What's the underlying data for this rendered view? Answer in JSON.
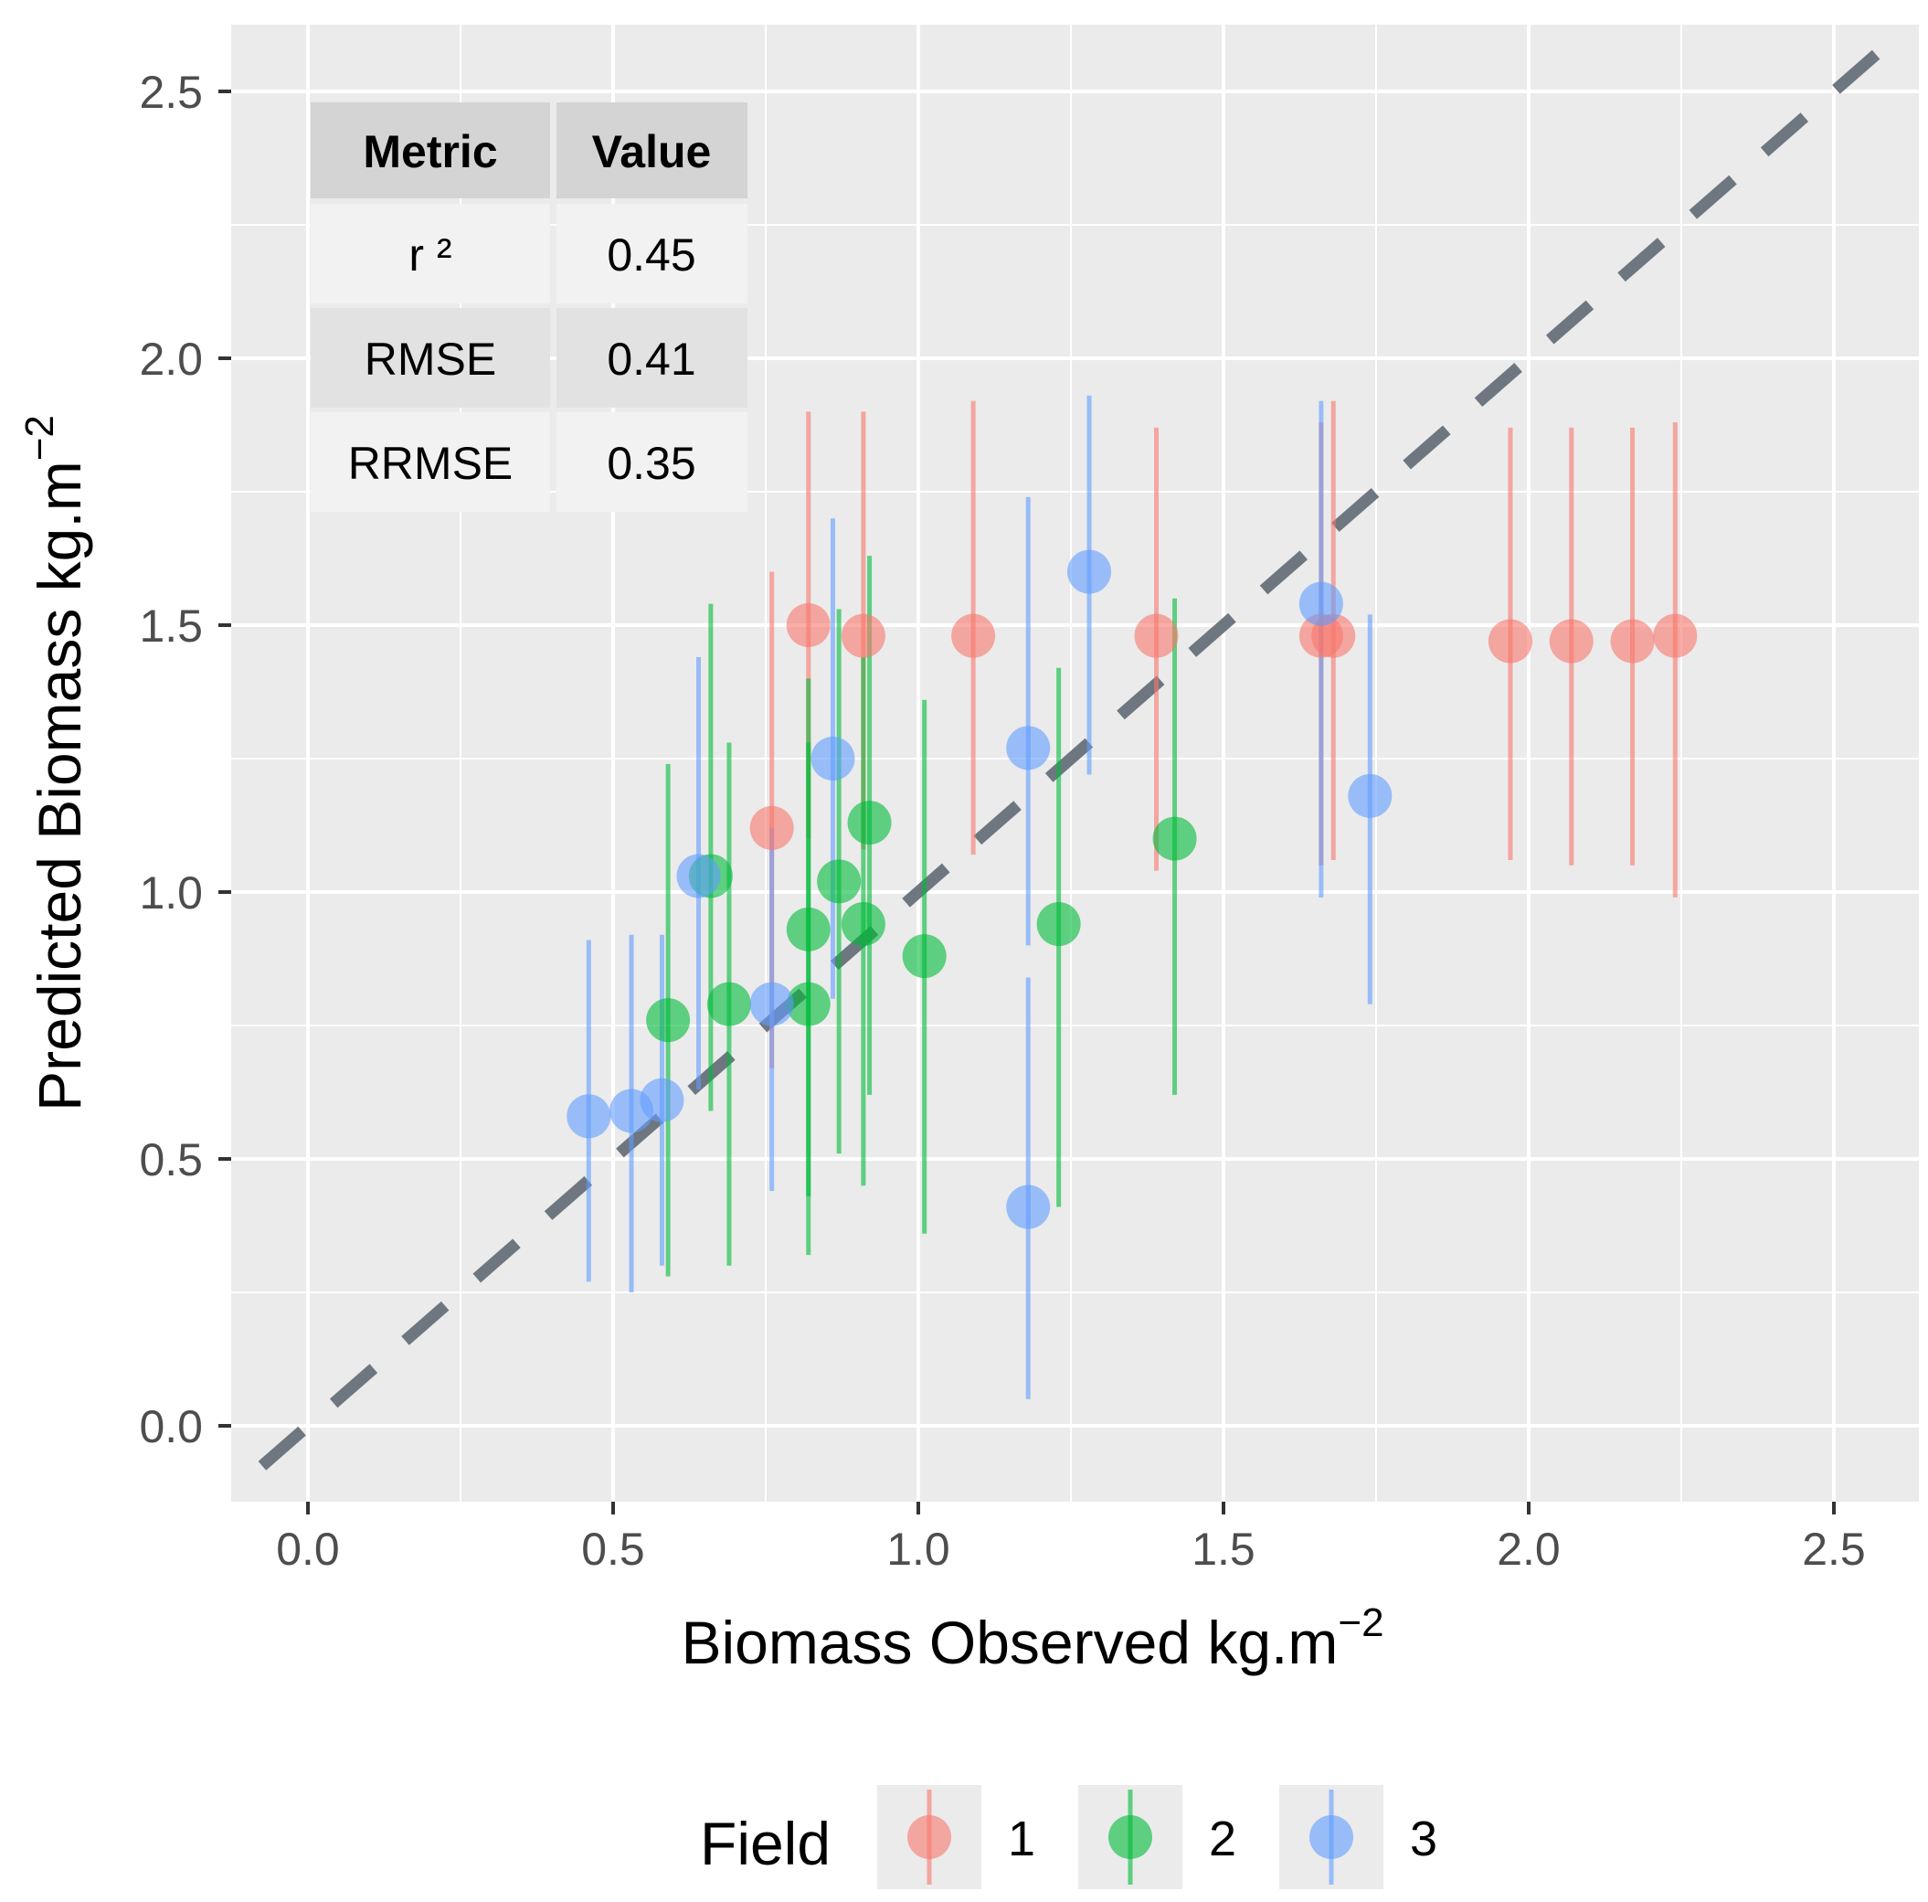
{
  "chart_data": {
    "type": "scatter",
    "title": "",
    "xlabel": "Biomass Observed kg.m",
    "xlabel_sup": "−2",
    "ylabel": "Predicted Biomass kg.m",
    "ylabel_sup": "−2",
    "xlim": [
      -0.125,
      2.625
    ],
    "ylim": [
      -0.125,
      2.625
    ],
    "x_ticks": [
      0.0,
      0.5,
      1.0,
      1.5,
      2.0,
      2.5
    ],
    "y_ticks": [
      0.0,
      0.5,
      1.0,
      1.5,
      2.0,
      2.5
    ],
    "x_tick_labels": [
      "0.0",
      "0.5",
      "1.0",
      "1.5",
      "2.0",
      "2.5"
    ],
    "y_tick_labels": [
      "0.0",
      "0.5",
      "1.0",
      "1.5",
      "2.0",
      "2.5"
    ],
    "grid": true,
    "reference_line": {
      "type": "1:1",
      "style": "dashed",
      "color": "#6e7780"
    },
    "legend": {
      "title": "Field",
      "position": "bottom",
      "entries": [
        {
          "label": "1",
          "color": "#F8766D"
        },
        {
          "label": "2",
          "color": "#00BA38"
        },
        {
          "label": "3",
          "color": "#619CFF"
        }
      ]
    },
    "metrics_table": {
      "headers": [
        "Metric",
        "Value"
      ],
      "rows": [
        {
          "metric": "r ²",
          "value": "0.45"
        },
        {
          "metric": "RMSE",
          "value": "0.41"
        },
        {
          "metric": "RRMSE",
          "value": "0.35"
        }
      ]
    },
    "series": [
      {
        "name": "1",
        "color": "#F8766D",
        "points": [
          {
            "x": 0.76,
            "y": 1.12,
            "ymin": 0.67,
            "ymax": 1.6
          },
          {
            "x": 0.82,
            "y": 1.5,
            "ymin": 1.1,
            "ymax": 1.9
          },
          {
            "x": 0.91,
            "y": 1.48,
            "ymin": 1.08,
            "ymax": 1.9
          },
          {
            "x": 1.09,
            "y": 1.48,
            "ymin": 1.07,
            "ymax": 1.92
          },
          {
            "x": 1.39,
            "y": 1.48,
            "ymin": 1.04,
            "ymax": 1.87
          },
          {
            "x": 1.66,
            "y": 1.48,
            "ymin": 1.05,
            "ymax": 1.88
          },
          {
            "x": 1.68,
            "y": 1.48,
            "ymin": 1.06,
            "ymax": 1.92
          },
          {
            "x": 1.97,
            "y": 1.47,
            "ymin": 1.06,
            "ymax": 1.87
          },
          {
            "x": 2.07,
            "y": 1.47,
            "ymin": 1.05,
            "ymax": 1.87
          },
          {
            "x": 2.17,
            "y": 1.47,
            "ymin": 1.05,
            "ymax": 1.87
          },
          {
            "x": 2.24,
            "y": 1.48,
            "ymin": 0.99,
            "ymax": 1.88
          }
        ]
      },
      {
        "name": "2",
        "color": "#00BA38",
        "points": [
          {
            "x": 0.59,
            "y": 0.76,
            "ymin": 0.28,
            "ymax": 1.24
          },
          {
            "x": 0.66,
            "y": 1.03,
            "ymin": 0.59,
            "ymax": 1.54
          },
          {
            "x": 0.69,
            "y": 0.79,
            "ymin": 0.3,
            "ymax": 1.28
          },
          {
            "x": 0.82,
            "y": 0.93,
            "ymin": 0.43,
            "ymax": 1.4
          },
          {
            "x": 0.82,
            "y": 0.79,
            "ymin": 0.32,
            "ymax": 1.28
          },
          {
            "x": 0.87,
            "y": 1.02,
            "ymin": 0.51,
            "ymax": 1.53
          },
          {
            "x": 0.91,
            "y": 0.94,
            "ymin": 0.45,
            "ymax": 1.44
          },
          {
            "x": 0.92,
            "y": 1.13,
            "ymin": 0.62,
            "ymax": 1.63
          },
          {
            "x": 1.01,
            "y": 0.88,
            "ymin": 0.36,
            "ymax": 1.36
          },
          {
            "x": 1.23,
            "y": 0.94,
            "ymin": 0.41,
            "ymax": 1.42
          },
          {
            "x": 1.42,
            "y": 1.1,
            "ymin": 0.62,
            "ymax": 1.55
          }
        ]
      },
      {
        "name": "3",
        "color": "#619CFF",
        "points": [
          {
            "x": 0.46,
            "y": 0.58,
            "ymin": 0.27,
            "ymax": 0.91
          },
          {
            "x": 0.53,
            "y": 0.59,
            "ymin": 0.25,
            "ymax": 0.92
          },
          {
            "x": 0.58,
            "y": 0.61,
            "ymin": 0.3,
            "ymax": 0.92
          },
          {
            "x": 0.64,
            "y": 1.03,
            "ymin": 0.63,
            "ymax": 1.44
          },
          {
            "x": 0.76,
            "y": 0.79,
            "ymin": 0.44,
            "ymax": 1.12
          },
          {
            "x": 0.86,
            "y": 1.25,
            "ymin": 0.8,
            "ymax": 1.7
          },
          {
            "x": 1.18,
            "y": 1.27,
            "ymin": 0.9,
            "ymax": 1.74
          },
          {
            "x": 1.18,
            "y": 0.41,
            "ymin": 0.05,
            "ymax": 0.84
          },
          {
            "x": 1.28,
            "y": 1.6,
            "ymin": 1.22,
            "ymax": 1.93
          },
          {
            "x": 1.66,
            "y": 1.54,
            "ymin": 0.99,
            "ymax": 1.92
          },
          {
            "x": 1.74,
            "y": 1.18,
            "ymin": 0.79,
            "ymax": 1.52
          }
        ]
      }
    ]
  }
}
